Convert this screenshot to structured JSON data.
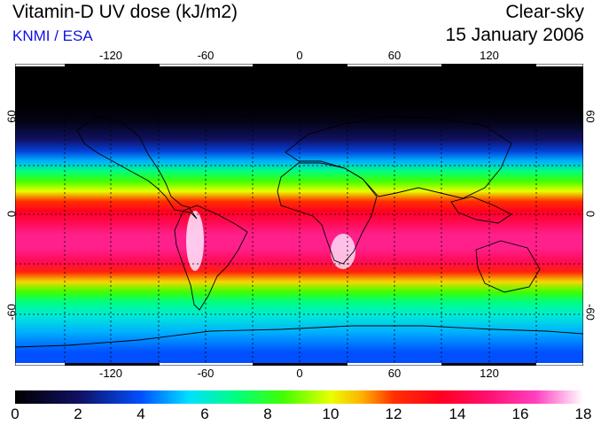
{
  "header": {
    "title": "Vitamin-D UV dose (kJ/m2)",
    "credit": "KNMI / ESA",
    "mode": "Clear-sky",
    "date": "15 January 2006"
  },
  "colors": {
    "credit": "#1010e0",
    "background": "#ffffff"
  },
  "axes": {
    "lon_ticks": [
      "-120",
      "-60",
      "0",
      "60",
      "120"
    ],
    "lat_ticks_left": [
      "60",
      "0",
      "-60"
    ],
    "lat_ticks_right": [
      "60",
      "0",
      "-60"
    ]
  },
  "colorbar": {
    "labels": [
      "0",
      "2",
      "4",
      "6",
      "8",
      "10",
      "12",
      "14",
      "16",
      "18"
    ],
    "min": 0,
    "max": 18,
    "stops": [
      {
        "value": 0,
        "color": "#000000"
      },
      {
        "value": 2,
        "color": "#101060"
      },
      {
        "value": 4,
        "color": "#0050ff"
      },
      {
        "value": 5.5,
        "color": "#00e0ff"
      },
      {
        "value": 7,
        "color": "#00ff80"
      },
      {
        "value": 8.5,
        "color": "#40ff00"
      },
      {
        "value": 10,
        "color": "#e8ff00"
      },
      {
        "value": 11,
        "color": "#ffb000"
      },
      {
        "value": 12,
        "color": "#ff3000"
      },
      {
        "value": 13.5,
        "color": "#ff0020"
      },
      {
        "value": 15,
        "color": "#ff1070"
      },
      {
        "value": 16.5,
        "color": "#ff40c0"
      },
      {
        "value": 18,
        "color": "#ffffff"
      }
    ]
  },
  "dose_profile": [
    {
      "lat": 90,
      "value": 0
    },
    {
      "lat": 65,
      "value": 0
    },
    {
      "lat": 55,
      "value": 0.5
    },
    {
      "lat": 45,
      "value": 2
    },
    {
      "lat": 38,
      "value": 3.5
    },
    {
      "lat": 32,
      "value": 5
    },
    {
      "lat": 26,
      "value": 7
    },
    {
      "lat": 20,
      "value": 8.5
    },
    {
      "lat": 14,
      "value": 10
    },
    {
      "lat": 8,
      "value": 12
    },
    {
      "lat": 2,
      "value": 13.5
    },
    {
      "lat": -5,
      "value": 14.5
    },
    {
      "lat": -12,
      "value": 15.5
    },
    {
      "lat": -20,
      "value": 15.5
    },
    {
      "lat": -28,
      "value": 14.5
    },
    {
      "lat": -34,
      "value": 12.5
    },
    {
      "lat": -40,
      "value": 10.5
    },
    {
      "lat": -46,
      "value": 8.5
    },
    {
      "lat": -52,
      "value": 7
    },
    {
      "lat": -60,
      "value": 6
    },
    {
      "lat": -70,
      "value": 5
    },
    {
      "lat": -82,
      "value": 4
    }
  ]
}
